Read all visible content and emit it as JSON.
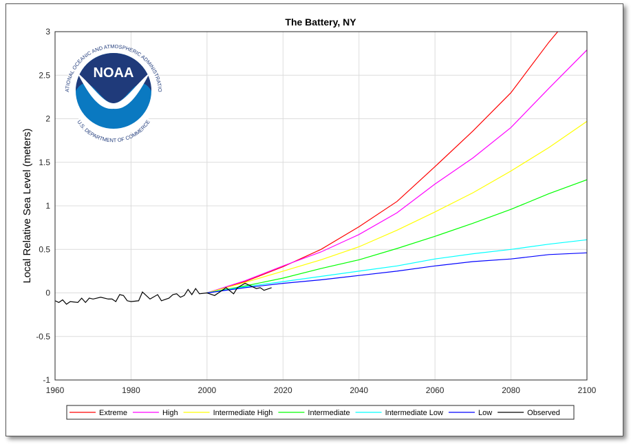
{
  "chart_data": {
    "type": "line",
    "title": "The Battery, NY",
    "xlabel": "",
    "ylabel": "Local Relative Sea Level (meters)",
    "xlim": [
      1960,
      2100
    ],
    "ylim": [
      -1,
      3
    ],
    "xticks": [
      "1960",
      "1980",
      "2000",
      "2020",
      "2040",
      "2060",
      "2080",
      "2100"
    ],
    "xtick_values": [
      1960,
      1980,
      2000,
      2020,
      2040,
      2060,
      2080,
      2100
    ],
    "yticks": [
      "-1",
      "-0.5",
      "0",
      "0.5",
      "1",
      "1.5",
      "2",
      "2.5",
      "3"
    ],
    "ytick_values": [
      -1,
      -0.5,
      0,
      0.5,
      1,
      1.5,
      2,
      2.5,
      3
    ],
    "grid": true,
    "legend_placement": "bottom-outside",
    "series": [
      {
        "name": "Extreme",
        "color": "#ff0000",
        "x": [
          2000,
          2010,
          2020,
          2030,
          2040,
          2050,
          2060,
          2070,
          2080,
          2090,
          2100
        ],
        "y": [
          0,
          0.13,
          0.3,
          0.5,
          0.76,
          1.05,
          1.45,
          1.86,
          2.3,
          2.88,
          3.4
        ]
      },
      {
        "name": "High",
        "color": "#ff00ff",
        "x": [
          2000,
          2010,
          2020,
          2030,
          2040,
          2050,
          2060,
          2070,
          2080,
          2090,
          2100
        ],
        "y": [
          0,
          0.14,
          0.31,
          0.47,
          0.67,
          0.92,
          1.25,
          1.55,
          1.9,
          2.35,
          2.79
        ]
      },
      {
        "name": "Intermediate High",
        "color": "#ffff00",
        "x": [
          2000,
          2010,
          2020,
          2030,
          2040,
          2050,
          2060,
          2070,
          2080,
          2090,
          2100
        ],
        "y": [
          0,
          0.12,
          0.25,
          0.38,
          0.53,
          0.72,
          0.93,
          1.15,
          1.4,
          1.67,
          1.97
        ]
      },
      {
        "name": "Intermediate",
        "color": "#00ff00",
        "x": [
          2000,
          2010,
          2020,
          2030,
          2040,
          2050,
          2060,
          2070,
          2080,
          2090,
          2100
        ],
        "y": [
          0,
          0.08,
          0.17,
          0.28,
          0.38,
          0.51,
          0.65,
          0.8,
          0.96,
          1.14,
          1.3
        ]
      },
      {
        "name": "Intermediate Low",
        "color": "#00ffff",
        "x": [
          2000,
          2010,
          2020,
          2030,
          2040,
          2050,
          2060,
          2070,
          2080,
          2090,
          2100
        ],
        "y": [
          0,
          0.07,
          0.13,
          0.19,
          0.25,
          0.31,
          0.39,
          0.45,
          0.5,
          0.56,
          0.61
        ]
      },
      {
        "name": "Low",
        "color": "#0000ff",
        "x": [
          2000,
          2010,
          2020,
          2030,
          2040,
          2050,
          2060,
          2070,
          2080,
          2090,
          2100
        ],
        "y": [
          0,
          0.06,
          0.11,
          0.15,
          0.2,
          0.25,
          0.31,
          0.36,
          0.39,
          0.44,
          0.46
        ]
      },
      {
        "name": "Observed",
        "color": "#000000",
        "x": [
          1960,
          1961,
          1962,
          1963,
          1964,
          1966,
          1967,
          1968,
          1969,
          1970,
          1972,
          1974,
          1975,
          1976,
          1977,
          1978,
          1979,
          1980,
          1982,
          1983,
          1985,
          1987,
          1988,
          1990,
          1991,
          1992,
          1993,
          1994,
          1995,
          1996,
          1997,
          1998,
          2000,
          2002,
          2004,
          2005,
          2007,
          2008,
          2010,
          2011,
          2013,
          2014,
          2015,
          2017
        ],
        "y": [
          -0.09,
          -0.11,
          -0.08,
          -0.13,
          -0.1,
          -0.11,
          -0.06,
          -0.11,
          -0.06,
          -0.07,
          -0.05,
          -0.07,
          -0.07,
          -0.1,
          -0.02,
          -0.03,
          -0.09,
          -0.1,
          -0.09,
          0.01,
          -0.07,
          -0.02,
          -0.09,
          -0.06,
          -0.02,
          -0.01,
          -0.05,
          -0.03,
          0.04,
          -0.02,
          0.05,
          -0.01,
          0,
          -0.03,
          0.03,
          0.06,
          -0.01,
          0.06,
          0.11,
          0.09,
          0.05,
          0.06,
          0.03,
          0.06
        ]
      }
    ]
  },
  "logo": {
    "name": "NOAA",
    "top_text": "NATIONAL OCEANIC AND ATMOSPHERIC ADMINISTRATION",
    "bottom_text": "U.S. DEPARTMENT OF COMMERCE"
  }
}
